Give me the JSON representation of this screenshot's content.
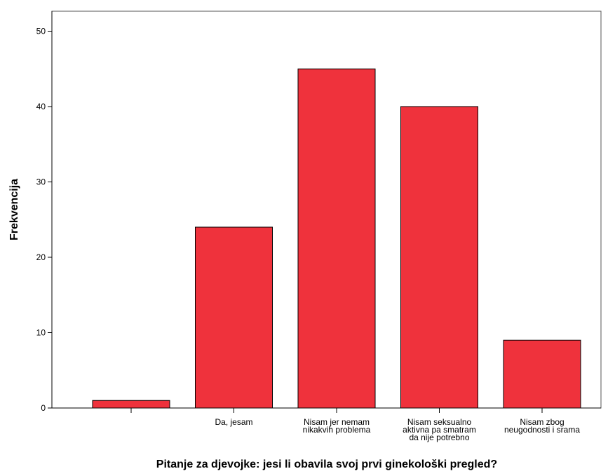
{
  "chart_data": {
    "type": "bar",
    "xlabel": "Pitanje za djevojke: jesi li obavila svoj prvi ginekološki pregled?",
    "ylabel": "Frekvencija",
    "ylim": [
      0,
      52
    ],
    "yticks": [
      0,
      10,
      20,
      30,
      40,
      50
    ],
    "categories": [
      [],
      [
        "Da, jesam"
      ],
      [
        "Nisam jer nemam",
        "nikakvih problema"
      ],
      [
        "Nisam seksualno",
        "aktivna pa smatram",
        "da nije potrebno"
      ],
      [
        "Nisam zbog",
        "neugodnosti i srama"
      ]
    ],
    "values": [
      1,
      24,
      45,
      40,
      9
    ],
    "bar_color": "#ef323c",
    "grid": false
  }
}
